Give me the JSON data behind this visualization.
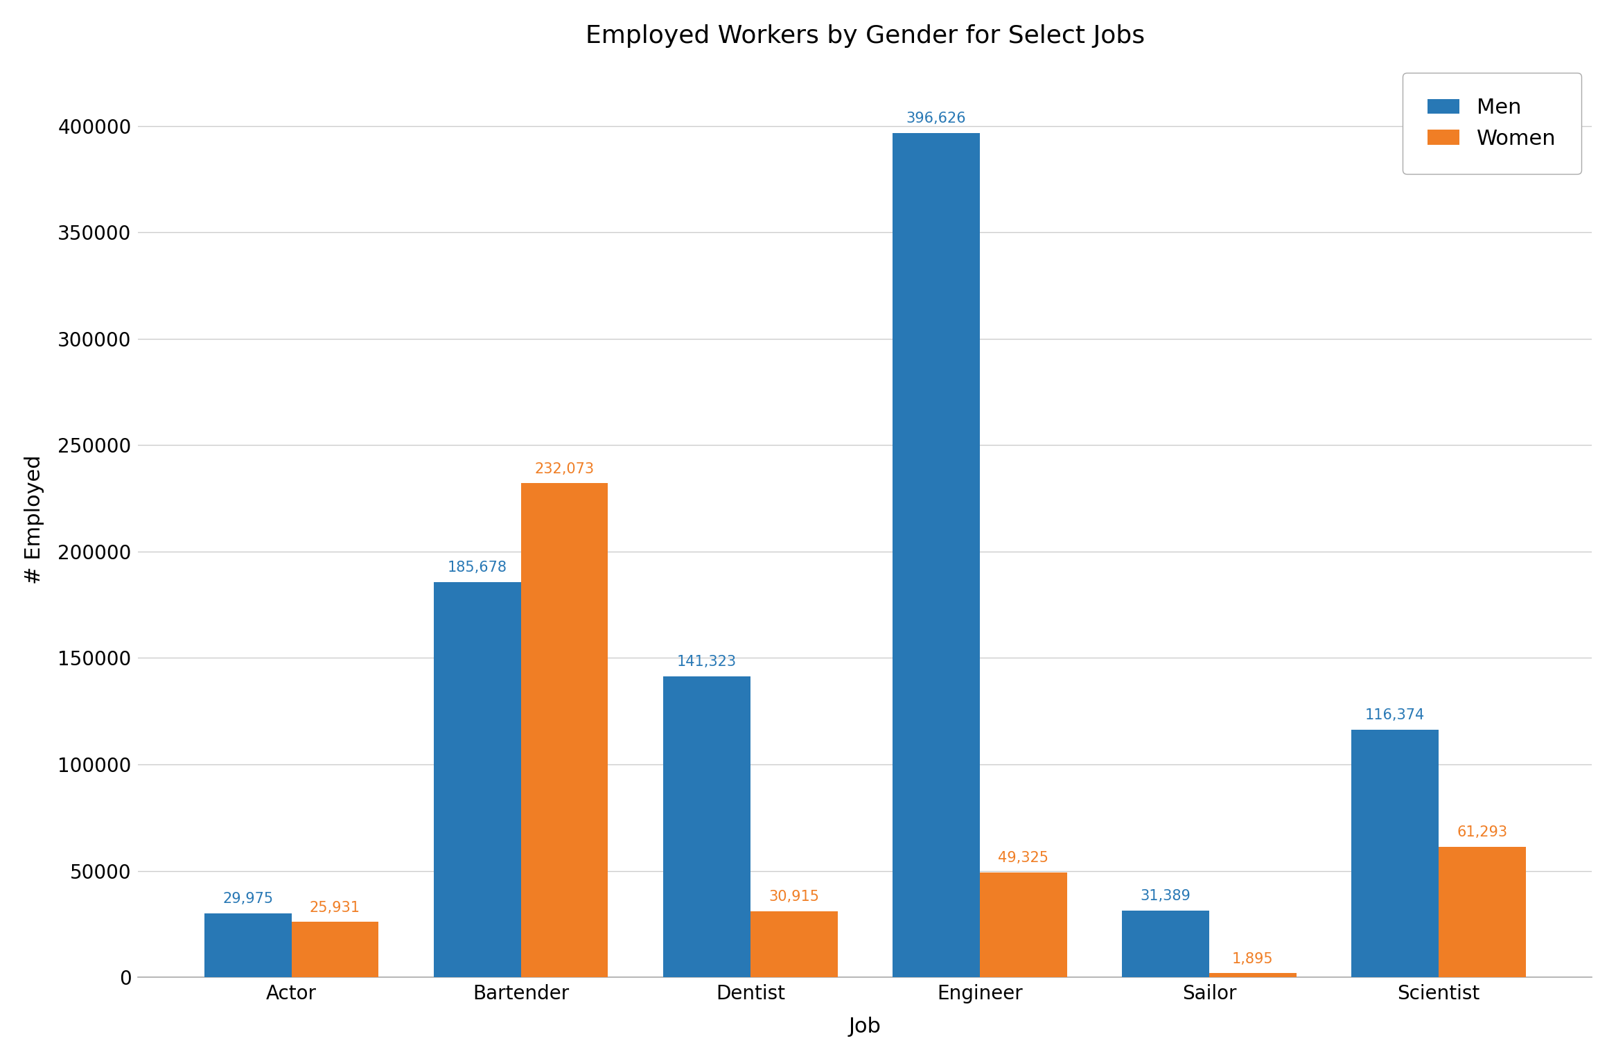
{
  "title": "Employed Workers by Gender for Select Jobs",
  "xlabel": "Job",
  "ylabel": "# Employed",
  "categories": [
    "Actor",
    "Bartender",
    "Dentist",
    "Engineer",
    "Sailor",
    "Scientist"
  ],
  "men_values": [
    29975,
    185678,
    141323,
    396626,
    31389,
    116374
  ],
  "women_values": [
    25931,
    232073,
    30915,
    49325,
    1895,
    61293
  ],
  "men_color": "#2878b5",
  "women_color": "#f07e25",
  "legend_labels": [
    "Men",
    "Women"
  ],
  "bar_width": 0.38,
  "title_fontsize": 26,
  "label_fontsize": 22,
  "tick_fontsize": 20,
  "legend_fontsize": 22,
  "annotation_fontsize": 15,
  "ylim": [
    0,
    430000
  ],
  "background_color": "#ffffff",
  "spine_color": "#aaaaaa",
  "grid_color": "#cccccc"
}
